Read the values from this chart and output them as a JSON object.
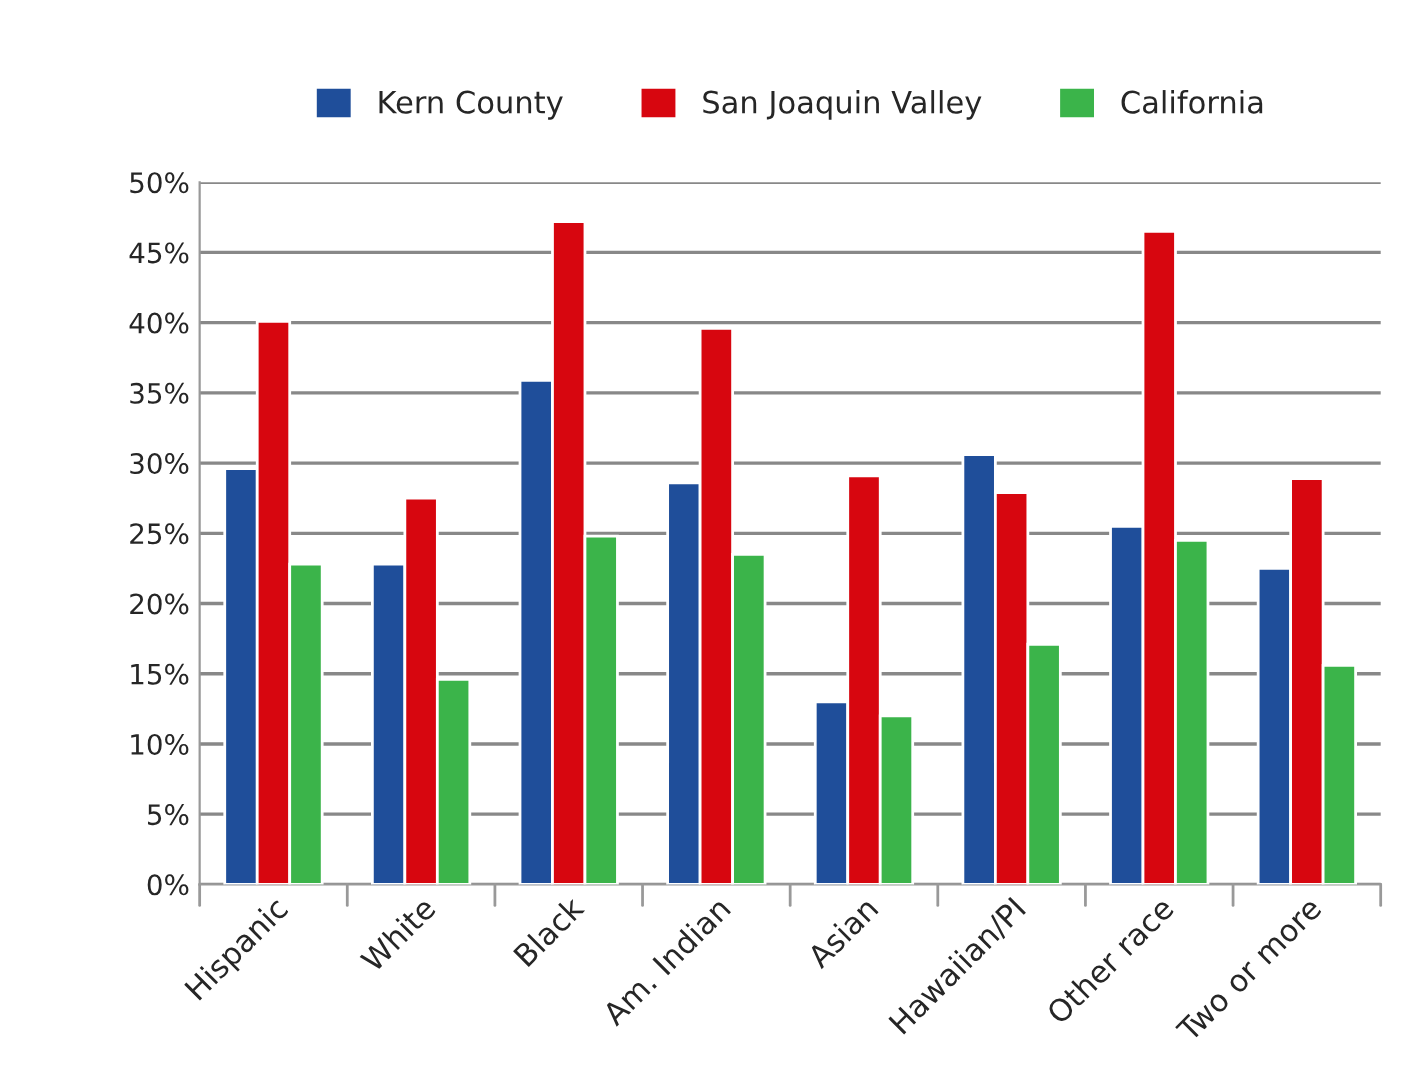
{
  "chart_data": {
    "type": "bar",
    "categories": [
      "Hispanic",
      "White",
      "Black",
      "Am. Indian",
      "Asian",
      "Hawaiian/PI",
      "Other race",
      "Two or more"
    ],
    "series": [
      {
        "name": "Kern County",
        "color": "#1f4e9a",
        "values": [
          29.6,
          22.8,
          35.9,
          28.6,
          13.0,
          30.6,
          25.5,
          22.5
        ]
      },
      {
        "name": "San Joaquin Valley",
        "color": "#d7060f",
        "values": [
          40.1,
          27.5,
          47.2,
          39.6,
          29.1,
          27.9,
          46.5,
          28.9
        ]
      },
      {
        "name": "California",
        "color": "#3bb44a",
        "values": [
          22.8,
          14.6,
          24.8,
          23.5,
          12.0,
          17.1,
          24.5,
          15.6
        ]
      }
    ],
    "ylim": [
      0,
      50
    ],
    "yticks": [
      {
        "value": 0,
        "label": "0%"
      },
      {
        "value": 5,
        "label": "5%"
      },
      {
        "value": 10,
        "label": "10%"
      },
      {
        "value": 15,
        "label": "15%"
      },
      {
        "value": 20,
        "label": "20%"
      },
      {
        "value": 25,
        "label": "25%"
      },
      {
        "value": 30,
        "label": "30%"
      },
      {
        "value": 35,
        "label": "35%"
      },
      {
        "value": 40,
        "label": "40%"
      },
      {
        "value": 45,
        "label": "45%"
      },
      {
        "value": 50,
        "label": "50%"
      }
    ],
    "grid": "y",
    "legend": "top"
  }
}
